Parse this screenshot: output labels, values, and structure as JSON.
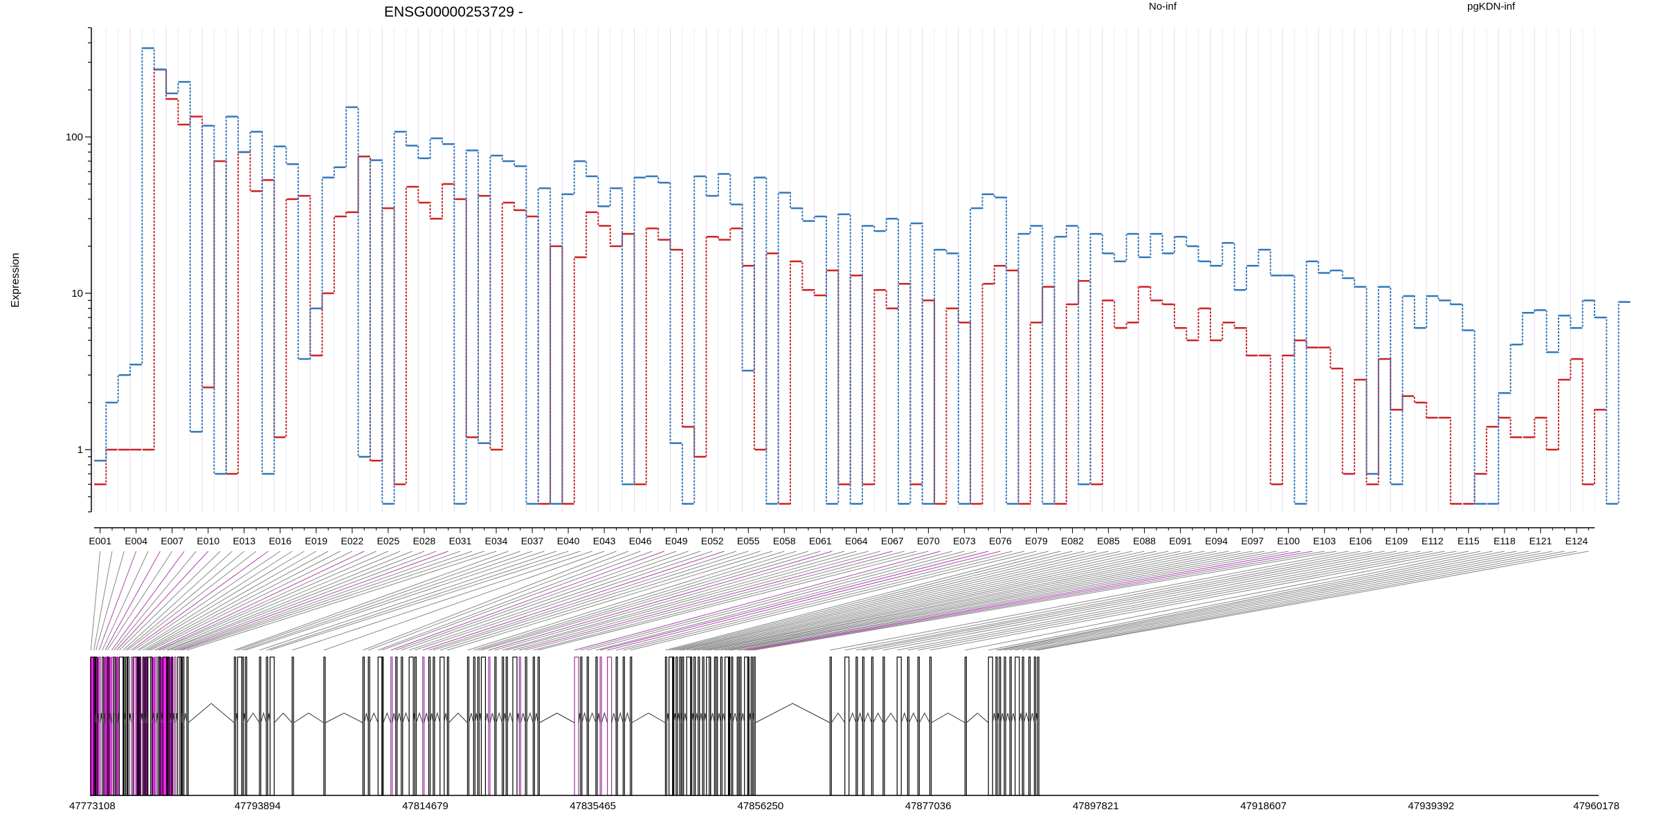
{
  "chart_data": {
    "type": "line",
    "title": "ENSG00000253729 -",
    "ylabel": "Expression",
    "xlabel": "",
    "y_scale": "log",
    "ylim": [
      0.4,
      500
    ],
    "y_ticks": [
      1,
      10,
      100
    ],
    "y_tick_labels": [
      "1",
      "10",
      "100"
    ],
    "grid": "vertical light lines at every exon boundary",
    "legend_position": "top",
    "colors": {
      "No-inf": "#cc2222",
      "pgKDN-inf": "#3377bb",
      "rainbow_highlight": "#ee22ee",
      "connector": "#888888",
      "gene_model": "#000000"
    },
    "exon_count": 125,
    "exon_tick_labels": [
      "E001",
      "E004",
      "E007",
      "E010",
      "E013",
      "E016",
      "E019",
      "E022",
      "E025",
      "E028",
      "E031",
      "E034",
      "E037",
      "E040",
      "E043",
      "E046",
      "E049",
      "E052",
      "E055",
      "E058",
      "E061",
      "E064",
      "E067",
      "E070",
      "E073",
      "E076",
      "E079",
      "E082",
      "E085",
      "E088",
      "E091",
      "E094",
      "E097",
      "E100",
      "E103",
      "E106",
      "E109",
      "E112",
      "E115",
      "E118",
      "E121",
      "E124"
    ],
    "series": [
      {
        "name": "No-inf",
        "values": [
          0.6,
          1,
          1,
          1,
          1,
          270,
          175,
          120,
          135,
          2.5,
          70,
          0.7,
          80,
          45,
          53,
          1.2,
          40,
          42,
          4,
          10,
          31,
          33,
          75,
          0.85,
          35,
          0.6,
          48,
          38,
          30,
          50,
          40,
          1.2,
          42,
          1,
          38,
          34,
          31,
          0.45,
          20,
          0.45,
          17,
          33,
          27,
          20,
          24,
          0.6,
          26,
          22,
          19,
          1.4,
          0.9,
          23,
          22,
          26,
          15,
          1,
          18,
          0.45,
          16,
          10.5,
          9.7,
          14,
          0.6,
          13,
          0.6,
          10.5,
          8,
          11.5,
          0.6,
          9,
          0.45,
          8,
          6.5,
          0.45,
          11.5,
          15,
          14,
          0.45,
          6.5,
          11,
          0.45,
          8.5,
          12,
          0.6,
          9,
          6,
          6.5,
          11,
          9,
          8.5,
          6,
          5,
          8,
          5,
          6.5,
          6,
          4,
          4,
          0.6,
          4,
          5,
          4.5,
          4.5,
          3.3,
          0.7,
          2.8,
          0.6,
          3.8,
          1.8,
          2.2,
          2,
          1.6,
          1.6,
          0.45,
          0.45,
          0.7,
          1.4,
          1.6,
          1.2,
          1.2,
          1.6,
          1,
          2.8,
          3.8,
          0.6,
          1.8
        ]
      },
      {
        "name": "pgKDN-inf",
        "values": [
          0.85,
          2,
          3,
          3.5,
          370,
          270,
          190,
          225,
          1.3,
          118,
          0.7,
          135,
          80,
          108,
          0.7,
          87,
          67,
          3.8,
          8,
          55,
          64,
          155,
          0.9,
          71,
          0.45,
          108,
          88,
          73,
          98,
          90,
          0.45,
          82,
          1.1,
          76,
          70,
          65,
          0.45,
          47,
          0.45,
          43,
          70,
          56,
          36,
          47,
          0.6,
          55,
          56,
          51,
          1.1,
          0.45,
          56,
          42,
          58,
          37,
          3.2,
          55,
          0.45,
          44,
          35,
          29,
          31,
          0.45,
          32,
          0.45,
          27,
          25,
          30,
          0.45,
          28,
          0.45,
          19,
          18,
          0.45,
          35,
          43,
          41,
          0.45,
          24,
          27,
          0.45,
          23,
          27,
          0.6,
          24,
          18,
          16,
          24,
          17,
          24,
          18,
          23,
          20,
          16,
          15,
          21,
          10.5,
          15,
          19,
          13,
          13,
          0.45,
          16,
          13.5,
          14,
          12.5,
          11,
          0.7,
          11,
          0.6,
          9.6,
          6,
          9.6,
          9,
          8.5,
          5.8,
          0.45,
          0.45,
          2.3,
          4.7,
          7.5,
          7.8,
          4.2,
          7.2,
          6,
          9,
          7,
          0.45,
          8.8
        ]
      }
    ],
    "genomic_coordinates": [
      "47773108",
      "47793894",
      "47814679",
      "47835465",
      "47856250",
      "47877036",
      "47897821",
      "47918607",
      "47939392",
      "47960178"
    ]
  }
}
